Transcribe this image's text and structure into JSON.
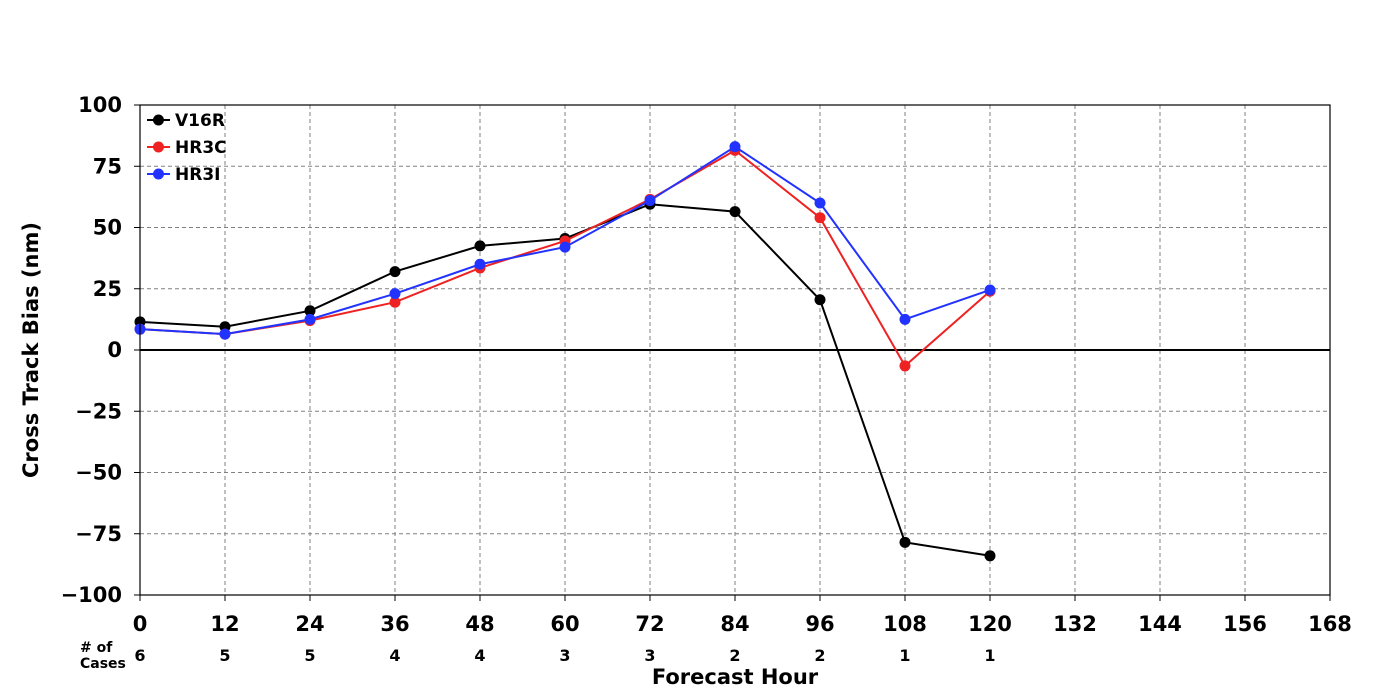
{
  "chart_data": {
    "type": "line",
    "title": "",
    "xlabel": "Forecast Hour",
    "ylabel": "Cross Track Bias (nm)",
    "xlim": [
      0,
      168
    ],
    "ylim": [
      -100,
      100
    ],
    "x_ticks": [
      0,
      12,
      24,
      36,
      48,
      60,
      72,
      84,
      96,
      108,
      120,
      132,
      144,
      156,
      168
    ],
    "y_ticks": [
      -100,
      -75,
      -50,
      -25,
      0,
      25,
      50,
      75,
      100
    ],
    "y_tick_labels": [
      "−100",
      "−75",
      "−50",
      "−25",
      "0",
      "25",
      "50",
      "75",
      "100"
    ],
    "grid": true,
    "legend_position": "top-left",
    "zero_line": true,
    "series": [
      {
        "name": "V16R",
        "color": "#000000",
        "x": [
          0,
          12,
          24,
          36,
          48,
          60,
          72,
          84,
          96,
          108,
          120
        ],
        "y": [
          11.5,
          9.5,
          16,
          32,
          42.5,
          45.5,
          59.5,
          56.5,
          20.5,
          -78.5,
          -84
        ]
      },
      {
        "name": "HR3C",
        "color": "#ee2222",
        "x": [
          0,
          12,
          24,
          36,
          48,
          60,
          72,
          84,
          96,
          108,
          120
        ],
        "y": [
          8.5,
          6.5,
          12,
          19.5,
          33.5,
          44.5,
          61.5,
          81.5,
          54,
          -6.5,
          24
        ]
      },
      {
        "name": "HR3I",
        "color": "#2233ff",
        "x": [
          0,
          12,
          24,
          36,
          48,
          60,
          72,
          84,
          96,
          108,
          120
        ],
        "y": [
          8.5,
          6.5,
          12.5,
          23,
          35,
          42,
          61,
          83,
          60,
          12.5,
          24.5
        ]
      }
    ],
    "cases": {
      "label_line1": "# of",
      "label_line2": "Cases",
      "x": [
        0,
        12,
        24,
        36,
        48,
        60,
        72,
        84,
        96,
        108,
        120
      ],
      "counts": [
        "6",
        "5",
        "5",
        "4",
        "4",
        "3",
        "3",
        "2",
        "2",
        "1",
        "1"
      ]
    }
  }
}
